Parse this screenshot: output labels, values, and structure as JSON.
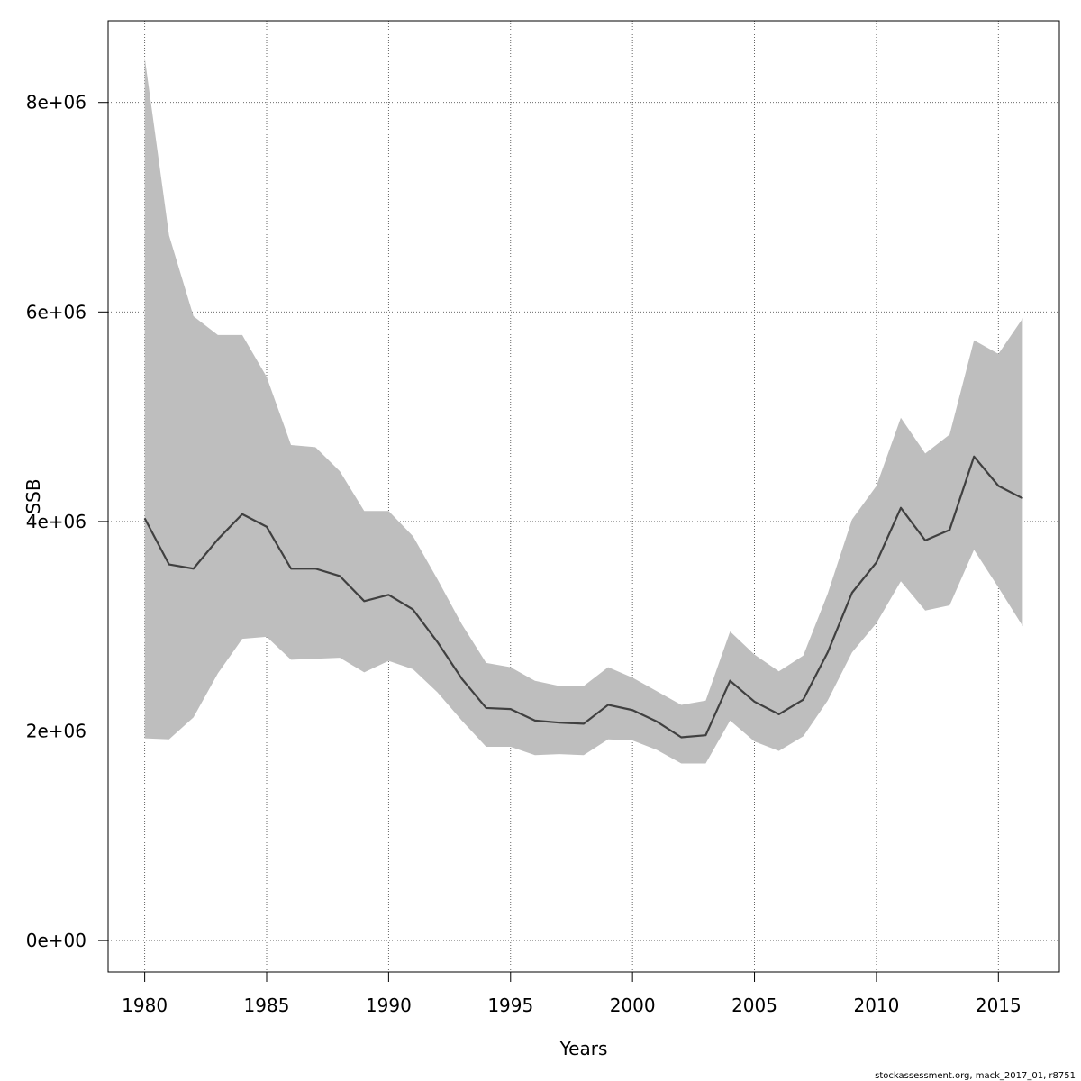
{
  "chart_data": {
    "type": "line",
    "xlabel": "Years",
    "ylabel": "SSB",
    "xlim": [
      1978.5,
      2017.5
    ],
    "ylim": [
      -300000,
      8780000
    ],
    "x_ticks": [
      1980,
      1985,
      1990,
      1995,
      2000,
      2005,
      2010,
      2015
    ],
    "x_tick_labels": [
      "1980",
      "1985",
      "1990",
      "1995",
      "2000",
      "2005",
      "2010",
      "2015"
    ],
    "y_ticks": [
      0,
      2000000,
      4000000,
      6000000,
      8000000
    ],
    "y_tick_labels": [
      "0e+00",
      "2e+06",
      "4e+06",
      "6e+06",
      "8e+06"
    ],
    "grid": true,
    "x": [
      1980,
      1981,
      1982,
      1983,
      1984,
      1985,
      1986,
      1987,
      1988,
      1989,
      1990,
      1991,
      1992,
      1993,
      1994,
      1995,
      1996,
      1997,
      1998,
      1999,
      2000,
      2001,
      2002,
      2003,
      2004,
      2005,
      2006,
      2007,
      2008,
      2009,
      2010,
      2011,
      2012,
      2013,
      2014,
      2015,
      2016
    ],
    "series": [
      {
        "values": [
          4030000,
          3590000,
          3550000,
          3830000,
          4070000,
          3950000,
          3550000,
          3550000,
          3480000,
          3240000,
          3300000,
          3160000,
          2850000,
          2500000,
          2220000,
          2210000,
          2100000,
          2080000,
          2070000,
          2250000,
          2200000,
          2090000,
          1940000,
          1960000,
          2480000,
          2280000,
          2160000,
          2300000,
          2750000,
          3320000,
          3610000,
          4130000,
          3820000,
          3920000,
          4620000,
          4340000,
          4220000
        ],
        "lower": [
          1930000,
          1920000,
          2130000,
          2550000,
          2880000,
          2900000,
          2680000,
          2690000,
          2700000,
          2560000,
          2670000,
          2590000,
          2370000,
          2100000,
          1850000,
          1850000,
          1770000,
          1780000,
          1770000,
          1920000,
          1910000,
          1820000,
          1690000,
          1690000,
          2100000,
          1900000,
          1810000,
          1950000,
          2290000,
          2750000,
          3030000,
          3430000,
          3150000,
          3200000,
          3730000,
          3370000,
          3000000
        ],
        "upper": [
          8430000,
          6730000,
          5960000,
          5780000,
          5780000,
          5380000,
          4730000,
          4710000,
          4480000,
          4100000,
          4100000,
          3860000,
          3450000,
          3020000,
          2650000,
          2610000,
          2480000,
          2430000,
          2430000,
          2610000,
          2510000,
          2380000,
          2250000,
          2290000,
          2950000,
          2730000,
          2570000,
          2720000,
          3310000,
          4020000,
          4340000,
          4990000,
          4650000,
          4830000,
          5730000,
          5600000,
          5940000
        ]
      }
    ],
    "colors": {
      "line": "#404040",
      "band": "#bebebe",
      "grid": "#555555",
      "axis": "#000000"
    }
  },
  "footer": {
    "note": "stockassessment.org, mack_2017_01, r8751"
  }
}
